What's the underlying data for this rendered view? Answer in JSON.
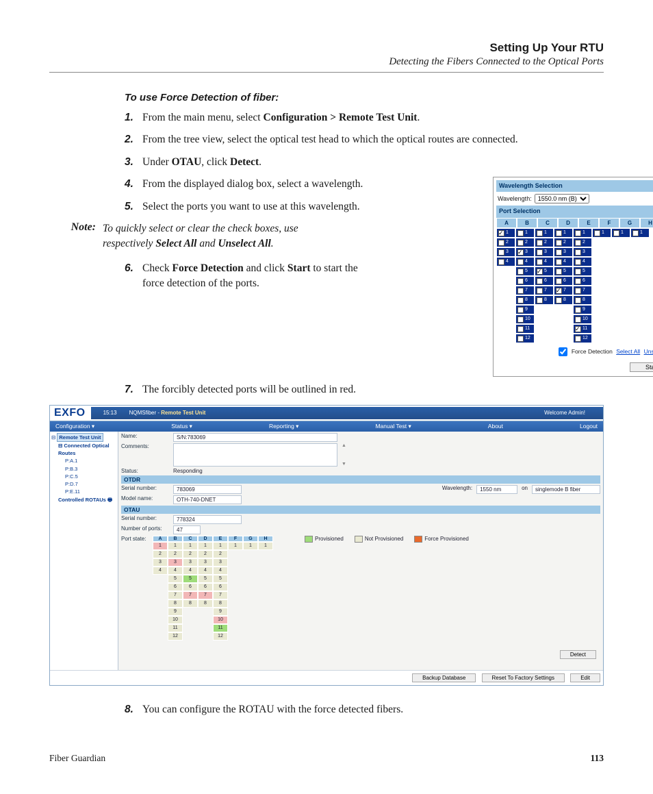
{
  "header": {
    "title": "Setting Up Your RTU",
    "subtitle": "Detecting the Fibers Connected to the Optical Ports"
  },
  "procedure": {
    "title": "To use Force Detection of fiber:",
    "step1": {
      "pre": "From the main menu, select ",
      "b1": "Configuration > Remote Test Unit",
      "post": "."
    },
    "step2": "From the tree view, select the optical test head to which the optical routes are connected.",
    "step3": {
      "pre": "Under ",
      "b1": "OTAU",
      "mid": ", click ",
      "b2": "Detect",
      "post": "."
    },
    "step4": "From the displayed dialog box, select a wavelength.",
    "step5": "Select the ports you want to use at this wavelength.",
    "note_label": "Note:",
    "note": {
      "pre": "To quickly select or clear the check boxes, use respectively ",
      "b1": "Select All",
      "mid": " and ",
      "b2": "Unselect All",
      "post": "."
    },
    "step6": {
      "pre": "Check ",
      "b1": "Force Detection",
      "mid": " and click ",
      "b2": "Start",
      "post": " to start the force detection of the ports."
    },
    "step7": "The forcibly detected ports will be outlined in red.",
    "step8": "You can configure the ROTAU with the force detected fibers."
  },
  "dialog": {
    "wavelength_header": "Wavelength Selection",
    "wavelength_label": "Wavelength:",
    "wavelength_value": "1550.0 nm (B)",
    "port_header": "Port Selection",
    "cols": [
      "A",
      "B",
      "C",
      "D",
      "E",
      "F",
      "G",
      "H"
    ],
    "grid": [
      [
        {
          "n": "1",
          "on": true,
          "ck": true
        },
        {
          "n": "1",
          "on": true
        },
        {
          "n": "1",
          "on": true
        },
        {
          "n": "1",
          "on": true
        },
        {
          "n": "1",
          "on": true
        },
        {
          "n": "1",
          "on": true
        },
        {
          "n": "1",
          "on": true
        },
        {
          "n": "1",
          "on": true
        }
      ],
      [
        {
          "n": "2",
          "on": true
        },
        {
          "n": "2",
          "on": true
        },
        {
          "n": "2",
          "on": true
        },
        {
          "n": "2",
          "on": true
        },
        {
          "n": "2",
          "on": true
        },
        null,
        null,
        null
      ],
      [
        {
          "n": "3",
          "on": true
        },
        {
          "n": "3",
          "on": true,
          "ck": true
        },
        {
          "n": "3",
          "on": true
        },
        {
          "n": "3",
          "on": true
        },
        {
          "n": "3",
          "on": true
        },
        null,
        null,
        null
      ],
      [
        {
          "n": "4",
          "on": true
        },
        {
          "n": "4",
          "on": true
        },
        {
          "n": "4",
          "on": true
        },
        {
          "n": "4",
          "on": true
        },
        {
          "n": "4",
          "on": true
        },
        null,
        null,
        null
      ],
      [
        null,
        {
          "n": "5",
          "on": true
        },
        {
          "n": "5",
          "on": true,
          "ck": true
        },
        {
          "n": "5",
          "on": true
        },
        {
          "n": "5",
          "on": true
        },
        null,
        null,
        null
      ],
      [
        null,
        {
          "n": "6",
          "on": true
        },
        {
          "n": "6",
          "on": true
        },
        {
          "n": "6",
          "on": true
        },
        {
          "n": "6",
          "on": true
        },
        null,
        null,
        null
      ],
      [
        null,
        {
          "n": "7",
          "on": true
        },
        {
          "n": "7",
          "on": true
        },
        {
          "n": "7",
          "on": true,
          "ck": true
        },
        {
          "n": "7",
          "on": true
        },
        null,
        null,
        null
      ],
      [
        null,
        {
          "n": "8",
          "on": true
        },
        {
          "n": "8",
          "on": true
        },
        {
          "n": "8",
          "on": true
        },
        {
          "n": "8",
          "on": true
        },
        null,
        null,
        null
      ],
      [
        null,
        {
          "n": "9",
          "on": true
        },
        null,
        null,
        {
          "n": "9",
          "on": true
        },
        null,
        null,
        null
      ],
      [
        null,
        {
          "n": "10",
          "on": true
        },
        null,
        null,
        {
          "n": "10",
          "on": true
        },
        null,
        null,
        null
      ],
      [
        null,
        {
          "n": "11",
          "on": true
        },
        null,
        null,
        {
          "n": "11",
          "on": true,
          "ck": true
        },
        null,
        null,
        null
      ],
      [
        null,
        {
          "n": "12",
          "on": true
        },
        null,
        null,
        {
          "n": "12",
          "on": true
        },
        null,
        null,
        null
      ]
    ],
    "force_label": "Force Detection",
    "select_all": "Select All",
    "unselect_all": "Unselect All",
    "start": "Start"
  },
  "app": {
    "logo": "EXFO",
    "time": "15:13",
    "breadcrumb_app": "NQMSfiber",
    "breadcrumb_sep": " - ",
    "breadcrumb_page": "Remote Test Unit",
    "welcome": "Welcome Admin!",
    "menu": [
      "Configuration ▾",
      "Status ▾",
      "Reporting ▾",
      "Manual Test ▾",
      "About",
      "Logout"
    ],
    "tree": {
      "root": "Remote Test Unit",
      "group1": "Connected Optical Routes",
      "items": [
        "P:A.1",
        "P:B.3",
        "P:C.5",
        "P:D.7",
        "P:E.11"
      ],
      "group2": "Controlled ROTAUs"
    },
    "fields": {
      "name_l": "Name:",
      "name_v": "S/N:783069",
      "comments_l": "Comments:",
      "status_l": "Status:",
      "status_v": "Responding",
      "otdr_h": "OTDR",
      "serial_l": "Serial number:",
      "serial_v": "783069",
      "model_l": "Model name:",
      "model_v": "OTH-740-DNET",
      "wavelength_l": "Wavelength:",
      "wavelength_v": "1550 nm",
      "on_l": "on",
      "fiber_v": "singlemode B fiber",
      "otau_h": "OTAU",
      "otau_serial_v": "778324",
      "nports_l": "Number of ports:",
      "nports_v": "47",
      "portstate_l": "Port state:"
    },
    "ps_cols": [
      "A",
      "B",
      "C",
      "D",
      "E",
      "F",
      "G",
      "H"
    ],
    "ps_grid": [
      [
        {
          "n": "1",
          "c": "y"
        },
        {
          "n": "1",
          "c": "b"
        },
        {
          "n": "1",
          "c": "b"
        },
        {
          "n": "1",
          "c": "b"
        },
        {
          "n": "1",
          "c": "b"
        },
        {
          "n": "1",
          "c": "b"
        },
        {
          "n": "1",
          "c": "b"
        },
        {
          "n": "1",
          "c": "b"
        }
      ],
      [
        {
          "n": "2",
          "c": "b"
        },
        {
          "n": "2",
          "c": "b"
        },
        {
          "n": "2",
          "c": "b"
        },
        {
          "n": "2",
          "c": "b"
        },
        {
          "n": "2",
          "c": "b"
        },
        null,
        null,
        null
      ],
      [
        {
          "n": "3",
          "c": "b"
        },
        {
          "n": "3",
          "c": "y"
        },
        {
          "n": "3",
          "c": "b"
        },
        {
          "n": "3",
          "c": "b"
        },
        {
          "n": "3",
          "c": "b"
        },
        null,
        null,
        null
      ],
      [
        {
          "n": "4",
          "c": "b"
        },
        {
          "n": "4",
          "c": "b"
        },
        {
          "n": "4",
          "c": "b"
        },
        {
          "n": "4",
          "c": "b"
        },
        {
          "n": "4",
          "c": "b"
        },
        null,
        null,
        null
      ],
      [
        null,
        {
          "n": "5",
          "c": "b"
        },
        {
          "n": "5",
          "c": "g"
        },
        {
          "n": "5",
          "c": "b"
        },
        {
          "n": "5",
          "c": "b"
        },
        null,
        null,
        null
      ],
      [
        null,
        {
          "n": "6",
          "c": "b"
        },
        {
          "n": "6",
          "c": "b"
        },
        {
          "n": "6",
          "c": "b"
        },
        {
          "n": "6",
          "c": "b"
        },
        null,
        null,
        null
      ],
      [
        null,
        {
          "n": "7",
          "c": "b"
        },
        {
          "n": "7",
          "c": "y"
        },
        {
          "n": "7",
          "c": "y"
        },
        {
          "n": "7",
          "c": "b"
        },
        null,
        null,
        null
      ],
      [
        null,
        {
          "n": "8",
          "c": "b"
        },
        {
          "n": "8",
          "c": "b"
        },
        {
          "n": "8",
          "c": "b"
        },
        {
          "n": "8",
          "c": "b"
        },
        null,
        null,
        null
      ],
      [
        null,
        {
          "n": "9",
          "c": "b"
        },
        null,
        null,
        {
          "n": "9",
          "c": "b"
        },
        null,
        null,
        null
      ],
      [
        null,
        {
          "n": "10",
          "c": "b"
        },
        null,
        null,
        {
          "n": "10",
          "c": "y"
        },
        null,
        null,
        null
      ],
      [
        null,
        {
          "n": "11",
          "c": "b"
        },
        null,
        null,
        {
          "n": "11",
          "c": "g"
        },
        null,
        null,
        null
      ],
      [
        null,
        {
          "n": "12",
          "c": "b"
        },
        null,
        null,
        {
          "n": "12",
          "c": "b"
        },
        null,
        null,
        null
      ]
    ],
    "legend": {
      "prov": "Provisioned",
      "notprov": "Not Provisioned",
      "force": "Force Provisioned"
    },
    "buttons": {
      "detect": "Detect",
      "backup": "Backup Database",
      "reset": "Reset To Factory Settings",
      "edit": "Edit"
    }
  },
  "footer": {
    "product": "Fiber Guardian",
    "page": "113"
  },
  "colors": {
    "header_blue": "#9ec8e6",
    "cell_navy": "#0a2d8c",
    "menu_blue": "#2a5fa8",
    "link_blue": "#0044cc",
    "green": "#9fdc7a",
    "beige": "#e9e9d2",
    "orange": "#e96a2c"
  }
}
